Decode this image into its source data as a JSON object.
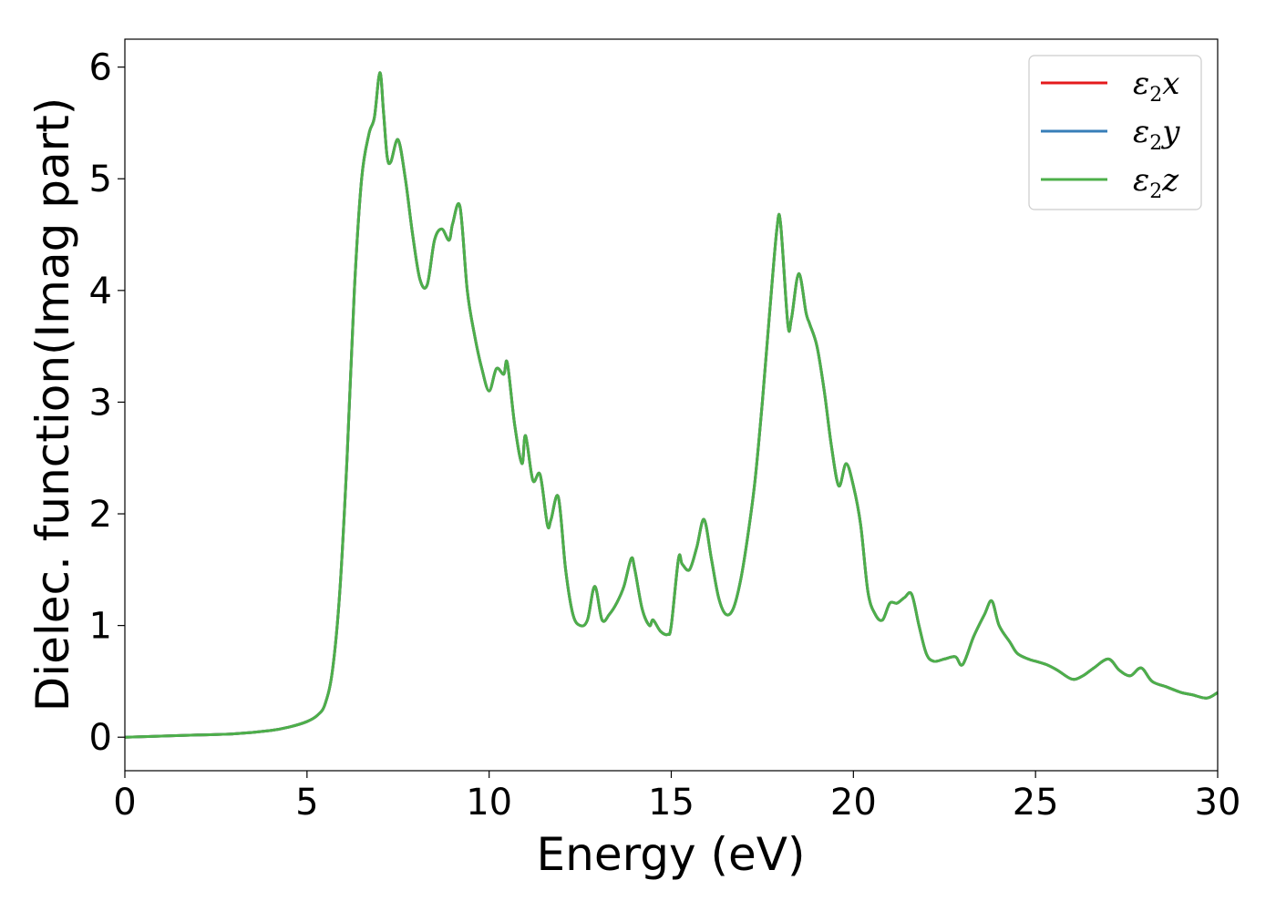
{
  "chart_data": {
    "type": "line",
    "xlabel": "Energy (eV)",
    "ylabel": "Dielec. function(Imag part)",
    "xlim": [
      0,
      30
    ],
    "ylim": [
      -0.3,
      6.25
    ],
    "xticks": [
      "0",
      "5",
      "10",
      "15",
      "20",
      "25",
      "30"
    ],
    "yticks": [
      "0",
      "1",
      "2",
      "3",
      "4",
      "5",
      "6"
    ],
    "grid": false,
    "legend_position": "top-right",
    "series": [
      {
        "name": "x",
        "legend_main": "ε",
        "legend_sub": "2",
        "legend_var": "x",
        "color": "#e41a1c"
      },
      {
        "name": "y",
        "legend_main": "ε",
        "legend_sub": "2",
        "legend_var": "y",
        "color": "#377eb8"
      },
      {
        "name": "z",
        "legend_main": "ε",
        "legend_sub": "2",
        "legend_var": "z",
        "color": "#4daf4a"
      }
    ],
    "x": [
      0,
      1,
      2,
      3,
      4,
      4.5,
      5,
      5.3,
      5.5,
      5.7,
      5.9,
      6.1,
      6.3,
      6.5,
      6.7,
      6.85,
      7.0,
      7.1,
      7.2,
      7.3,
      7.5,
      7.7,
      7.9,
      8.1,
      8.3,
      8.5,
      8.7,
      8.9,
      9.0,
      9.2,
      9.4,
      9.6,
      9.8,
      10.0,
      10.2,
      10.4,
      10.5,
      10.7,
      10.9,
      11.0,
      11.2,
      11.4,
      11.6,
      11.7,
      11.9,
      12.1,
      12.3,
      12.5,
      12.7,
      12.9,
      13.1,
      13.3,
      13.5,
      13.7,
      13.9,
      14.0,
      14.2,
      14.4,
      14.5,
      14.7,
      14.9,
      15.0,
      15.2,
      15.3,
      15.5,
      15.7,
      15.9,
      16.1,
      16.3,
      16.5,
      16.7,
      16.9,
      17.1,
      17.3,
      17.5,
      17.7,
      17.9,
      18.0,
      18.2,
      18.3,
      18.5,
      18.7,
      18.8,
      19.0,
      19.2,
      19.4,
      19.6,
      19.8,
      20.0,
      20.2,
      20.4,
      20.6,
      20.8,
      21.0,
      21.2,
      21.4,
      21.6,
      21.8,
      22.0,
      22.2,
      22.5,
      22.8,
      23.0,
      23.3,
      23.6,
      23.8,
      24.0,
      24.3,
      24.5,
      24.8,
      25.0,
      25.3,
      25.6,
      26.0,
      26.3,
      26.6,
      27.0,
      27.3,
      27.6,
      27.9,
      28.2,
      28.6,
      29.0,
      29.3,
      29.7,
      30.0
    ],
    "y": [
      0.0,
      0.01,
      0.02,
      0.03,
      0.06,
      0.09,
      0.14,
      0.2,
      0.3,
      0.6,
      1.3,
      2.5,
      4.0,
      5.0,
      5.4,
      5.55,
      5.95,
      5.6,
      5.2,
      5.15,
      5.35,
      5.0,
      4.5,
      4.1,
      4.05,
      4.45,
      4.55,
      4.45,
      4.6,
      4.75,
      4.0,
      3.6,
      3.3,
      3.1,
      3.3,
      3.25,
      3.35,
      2.8,
      2.45,
      2.7,
      2.3,
      2.35,
      1.9,
      1.95,
      2.15,
      1.5,
      1.1,
      1.0,
      1.05,
      1.35,
      1.05,
      1.1,
      1.2,
      1.35,
      1.6,
      1.5,
      1.15,
      1.0,
      1.05,
      0.95,
      0.92,
      1.0,
      1.6,
      1.55,
      1.5,
      1.7,
      1.95,
      1.6,
      1.25,
      1.1,
      1.15,
      1.4,
      1.8,
      2.3,
      3.0,
      3.8,
      4.55,
      4.6,
      3.7,
      3.75,
      4.15,
      3.8,
      3.7,
      3.5,
      3.1,
      2.6,
      2.25,
      2.45,
      2.25,
      1.9,
      1.3,
      1.1,
      1.05,
      1.2,
      1.2,
      1.25,
      1.28,
      1.0,
      0.75,
      0.68,
      0.7,
      0.72,
      0.65,
      0.9,
      1.1,
      1.22,
      1.0,
      0.85,
      0.75,
      0.7,
      0.68,
      0.65,
      0.6,
      0.52,
      0.55,
      0.62,
      0.7,
      0.6,
      0.55,
      0.62,
      0.5,
      0.45,
      0.4,
      0.38,
      0.35,
      0.4
    ]
  }
}
